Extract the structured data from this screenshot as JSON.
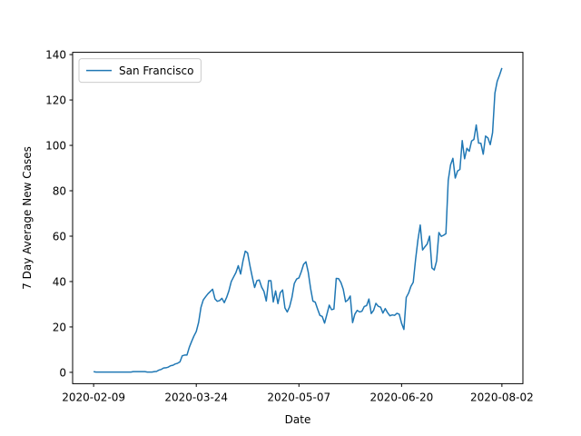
{
  "chart_data": {
    "type": "line",
    "xlabel": "Date",
    "ylabel": "7 Day Average New Cases",
    "legend": "upper left",
    "x": [
      "2020-02-09",
      "2020-02-10",
      "2020-02-11",
      "2020-02-12",
      "2020-02-13",
      "2020-02-14",
      "2020-02-15",
      "2020-02-16",
      "2020-02-17",
      "2020-02-18",
      "2020-02-19",
      "2020-02-20",
      "2020-02-21",
      "2020-02-22",
      "2020-02-23",
      "2020-02-24",
      "2020-02-25",
      "2020-02-26",
      "2020-02-27",
      "2020-02-28",
      "2020-02-29",
      "2020-03-01",
      "2020-03-02",
      "2020-03-03",
      "2020-03-04",
      "2020-03-05",
      "2020-03-06",
      "2020-03-07",
      "2020-03-08",
      "2020-03-09",
      "2020-03-10",
      "2020-03-11",
      "2020-03-12",
      "2020-03-13",
      "2020-03-14",
      "2020-03-15",
      "2020-03-16",
      "2020-03-17",
      "2020-03-18",
      "2020-03-19",
      "2020-03-20",
      "2020-03-21",
      "2020-03-22",
      "2020-03-23",
      "2020-03-24",
      "2020-03-25",
      "2020-03-26",
      "2020-03-27",
      "2020-03-28",
      "2020-03-29",
      "2020-03-30",
      "2020-03-31",
      "2020-04-01",
      "2020-04-02",
      "2020-04-03",
      "2020-04-04",
      "2020-04-05",
      "2020-04-06",
      "2020-04-07",
      "2020-04-08",
      "2020-04-09",
      "2020-04-10",
      "2020-04-11",
      "2020-04-12",
      "2020-04-13",
      "2020-04-14",
      "2020-04-15",
      "2020-04-16",
      "2020-04-17",
      "2020-04-18",
      "2020-04-19",
      "2020-04-20",
      "2020-04-21",
      "2020-04-22",
      "2020-04-23",
      "2020-04-24",
      "2020-04-25",
      "2020-04-26",
      "2020-04-27",
      "2020-04-28",
      "2020-04-29",
      "2020-04-30",
      "2020-05-01",
      "2020-05-02",
      "2020-05-03",
      "2020-05-04",
      "2020-05-05",
      "2020-05-06",
      "2020-05-07",
      "2020-05-08",
      "2020-05-09",
      "2020-05-10",
      "2020-05-11",
      "2020-05-12",
      "2020-05-13",
      "2020-05-14",
      "2020-05-15",
      "2020-05-16",
      "2020-05-17",
      "2020-05-18",
      "2020-05-19",
      "2020-05-20",
      "2020-05-21",
      "2020-05-22",
      "2020-05-23",
      "2020-05-24",
      "2020-05-25",
      "2020-05-26",
      "2020-05-27",
      "2020-05-28",
      "2020-05-29",
      "2020-05-30",
      "2020-05-31",
      "2020-06-01",
      "2020-06-02",
      "2020-06-03",
      "2020-06-04",
      "2020-06-05",
      "2020-06-06",
      "2020-06-07",
      "2020-06-08",
      "2020-06-09",
      "2020-06-10",
      "2020-06-11",
      "2020-06-12",
      "2020-06-13",
      "2020-06-14",
      "2020-06-15",
      "2020-06-16",
      "2020-06-17",
      "2020-06-18",
      "2020-06-19",
      "2020-06-20",
      "2020-06-21",
      "2020-06-22",
      "2020-06-23",
      "2020-06-24",
      "2020-06-25",
      "2020-06-26",
      "2020-06-27",
      "2020-06-28",
      "2020-06-29",
      "2020-06-30",
      "2020-07-01",
      "2020-07-02",
      "2020-07-03",
      "2020-07-04",
      "2020-07-05",
      "2020-07-06",
      "2020-07-07",
      "2020-07-08",
      "2020-07-09",
      "2020-07-10",
      "2020-07-11",
      "2020-07-12",
      "2020-07-13",
      "2020-07-14",
      "2020-07-15",
      "2020-07-16",
      "2020-07-17",
      "2020-07-18",
      "2020-07-19",
      "2020-07-20",
      "2020-07-21",
      "2020-07-22",
      "2020-07-23",
      "2020-07-24",
      "2020-07-25",
      "2020-07-26",
      "2020-07-27",
      "2020-07-28",
      "2020-07-29",
      "2020-07-30",
      "2020-07-31",
      "2020-08-01",
      "2020-08-02"
    ],
    "series": [
      {
        "name": "San Francisco",
        "color": "#1f77b4",
        "values": [
          0.3,
          0.1,
          0.1,
          0.1,
          0.1,
          0.1,
          0.1,
          0.1,
          0.1,
          0.1,
          0.1,
          0.1,
          0.1,
          0.1,
          0.1,
          0.1,
          0.1,
          0.3,
          0.3,
          0.3,
          0.3,
          0.3,
          0.3,
          0.1,
          0.1,
          0.1,
          0.3,
          0.4,
          1,
          1.3,
          1.9,
          2,
          2.3,
          2.9,
          3.1,
          3.7,
          4,
          4.6,
          7.3,
          7.6,
          7.6,
          11,
          13.6,
          16,
          18,
          22,
          28.6,
          31.9,
          33.3,
          34.6,
          35.6,
          36.6,
          32.4,
          31.3,
          31.6,
          32.6,
          30.7,
          33,
          36,
          40,
          42,
          44,
          47,
          43.3,
          49,
          53.4,
          52.6,
          47,
          42,
          37.4,
          40.4,
          40.7,
          37.6,
          35.7,
          31.4,
          40.4,
          40.4,
          31,
          35.9,
          30.3,
          35.1,
          36.3,
          28.4,
          26.6,
          28.9,
          33,
          39.1,
          41.1,
          41.6,
          44.3,
          47.6,
          48.7,
          44.1,
          37,
          31.4,
          30.9,
          27.9,
          25.1,
          24.6,
          21.7,
          25.6,
          29.6,
          27.6,
          27.9,
          41.4,
          41.3,
          39.6,
          36.6,
          31.1,
          31.9,
          33.6,
          21.9,
          25.7,
          27.3,
          26.6,
          26.9,
          29,
          29.4,
          32.3,
          25.9,
          27.3,
          30.4,
          29.1,
          28.7,
          26.1,
          28.1,
          26.3,
          24.9,
          25.3,
          25.1,
          26,
          25.6,
          21.6,
          18.9,
          33,
          34.9,
          37.9,
          39.7,
          49.7,
          58.3,
          64.9,
          53.9,
          55.3,
          56.6,
          60,
          46,
          45.1,
          49,
          61.6,
          59.9,
          60.4,
          61.1,
          84.6,
          91.4,
          94.3,
          85.6,
          88.7,
          89.4,
          102.1,
          94.1,
          98.7,
          97.4,
          101.9,
          102.6,
          109,
          101,
          100.9,
          96.1,
          104.1,
          103.3,
          100.3,
          105.6,
          123,
          128.3,
          131,
          134.1
        ]
      }
    ],
    "xlim": [
      "2020-01-31",
      "2020-08-11"
    ],
    "xticks": [
      "2020-02-09",
      "2020-03-24",
      "2020-05-07",
      "2020-06-20",
      "2020-08-02"
    ],
    "ylim": [
      -5,
      141
    ],
    "yticks": [
      0,
      20,
      40,
      60,
      80,
      100,
      120,
      140
    ]
  }
}
